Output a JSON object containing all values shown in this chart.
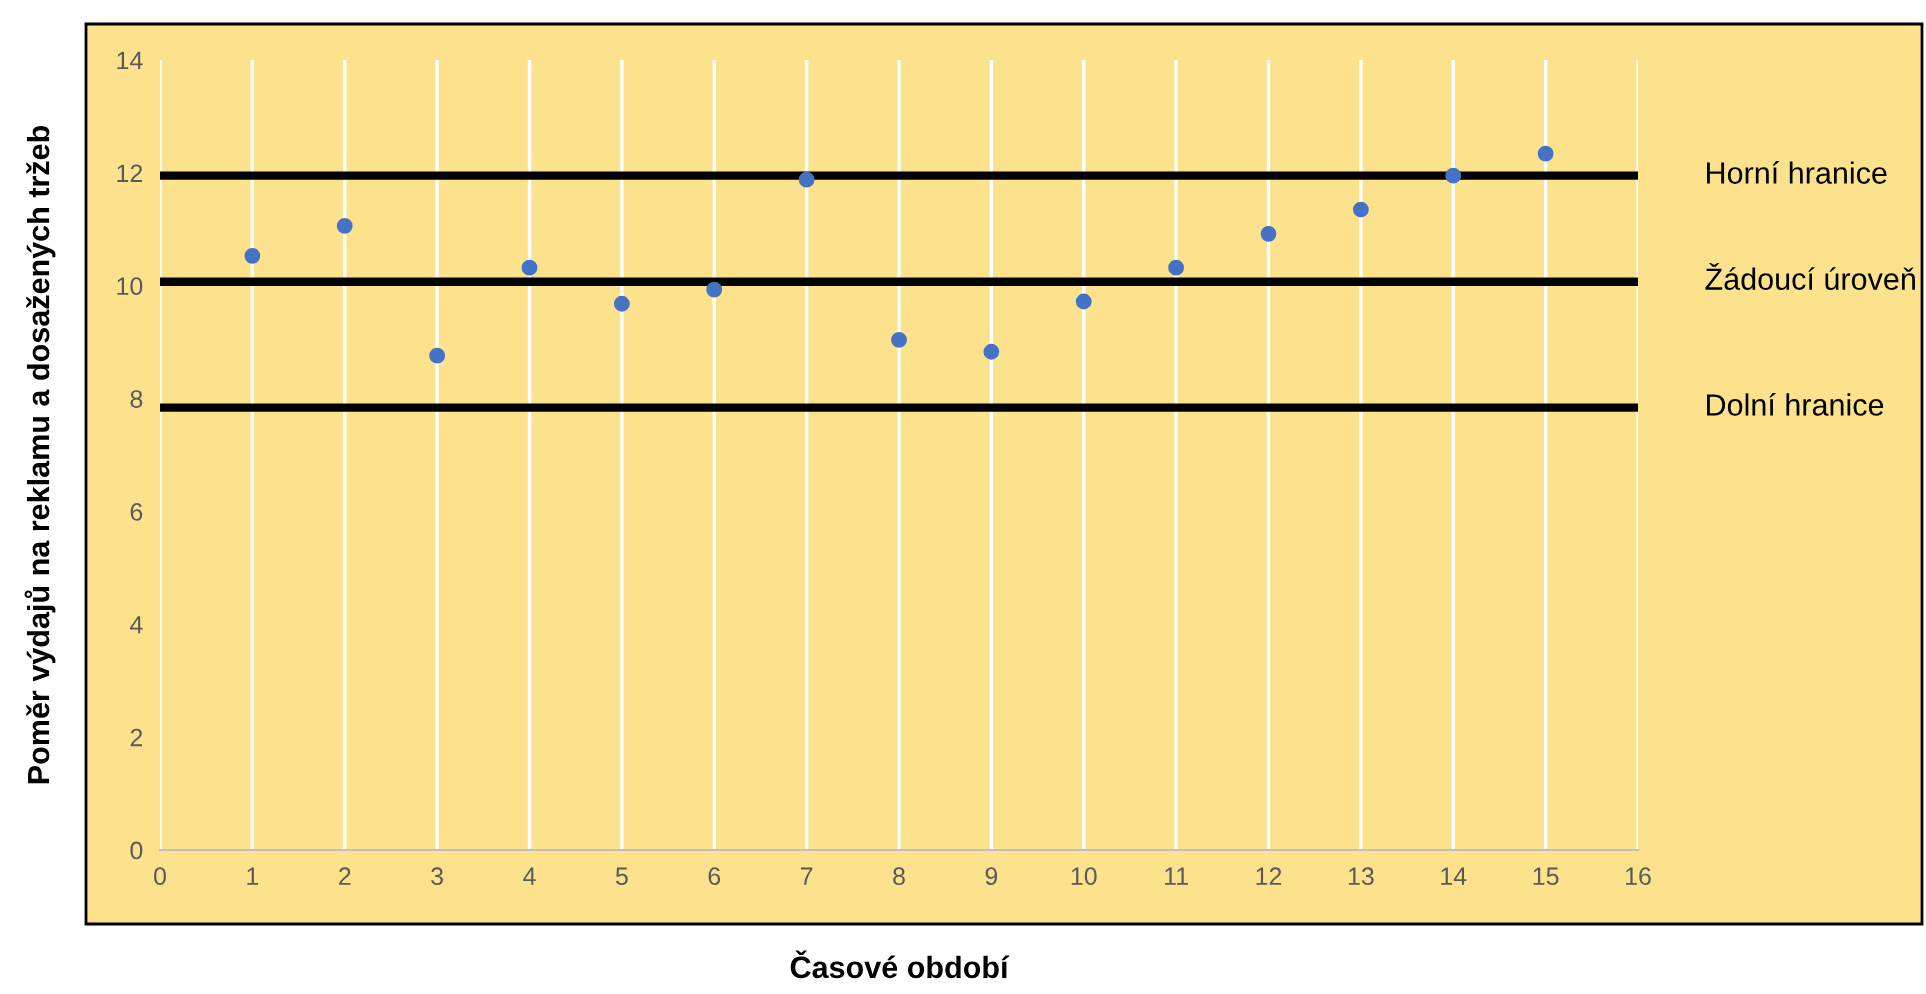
{
  "chart_data": {
    "type": "scatter",
    "xlabel": "Časové období",
    "ylabel": "Poměr výdajů na reklamu a dosažených tržeb",
    "x": [
      1,
      2,
      3,
      4,
      5,
      6,
      7,
      8,
      9,
      10,
      11,
      12,
      13,
      14,
      15
    ],
    "series": [
      {
        "color": "#4472c4",
        "values": [
          10.53,
          11.06,
          8.76,
          10.32,
          9.68,
          9.93,
          11.88,
          9.04,
          8.83,
          9.72,
          10.32,
          10.92,
          11.35,
          11.95,
          12.34
        ]
      }
    ],
    "xlim": [
      0,
      16
    ],
    "xticks": [
      0,
      1,
      2,
      3,
      4,
      5,
      6,
      7,
      8,
      9,
      10,
      11,
      12,
      13,
      14,
      15,
      16
    ],
    "ylim": [
      0,
      14
    ],
    "yticks": [
      0,
      2,
      4,
      6,
      8,
      10,
      12,
      14
    ],
    "grid": "x",
    "marker": "circle",
    "ref_lines": [
      {
        "axis": "y",
        "value": 11.95,
        "label": "Horní hranice",
        "color": "#000000",
        "line_style": "solid"
      },
      {
        "axis": "y",
        "value": 10.07,
        "label": "Žádoucí úroveň",
        "color": "#000000",
        "line_style": "solid"
      },
      {
        "axis": "y",
        "value": 7.84,
        "label": "Dolní hranice",
        "color": "#000000",
        "line_style": "solid"
      }
    ]
  }
}
